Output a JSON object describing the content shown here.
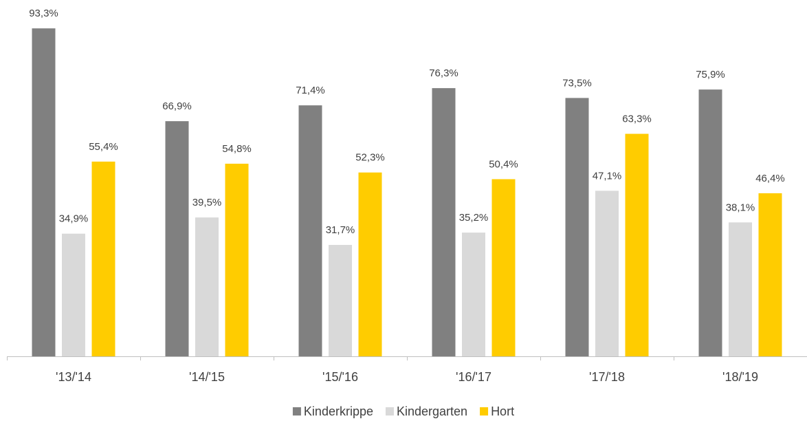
{
  "chart_data": {
    "type": "bar",
    "categories": [
      "'13/'14",
      "'14/'15",
      "'15/'16",
      "'16/'17",
      "'17/'18",
      "'18/'19"
    ],
    "series": [
      {
        "name": "Kinderkrippe",
        "color": "#808080",
        "values": [
          93.3,
          66.9,
          71.4,
          76.3,
          73.5,
          75.9
        ],
        "value_labels": [
          "93,3%",
          "66,9%",
          "71,4%",
          "76,3%",
          "73,5%",
          "75,9%"
        ]
      },
      {
        "name": "Kindergarten",
        "color": "#d9d9d9",
        "values": [
          34.9,
          39.5,
          31.7,
          35.2,
          47.1,
          38.1
        ],
        "value_labels": [
          "34,9%",
          "39,5%",
          "31,7%",
          "35,2%",
          "47,1%",
          "38,1%"
        ]
      },
      {
        "name": "Hort",
        "color": "#ffcc00",
        "values": [
          55.4,
          54.8,
          52.3,
          50.4,
          63.3,
          46.4
        ],
        "value_labels": [
          "55,4%",
          "54,8%",
          "52,3%",
          "50,4%",
          "63,3%",
          "46,4%"
        ]
      }
    ],
    "ylim": [
      0,
      100
    ],
    "legend": "bottom"
  }
}
